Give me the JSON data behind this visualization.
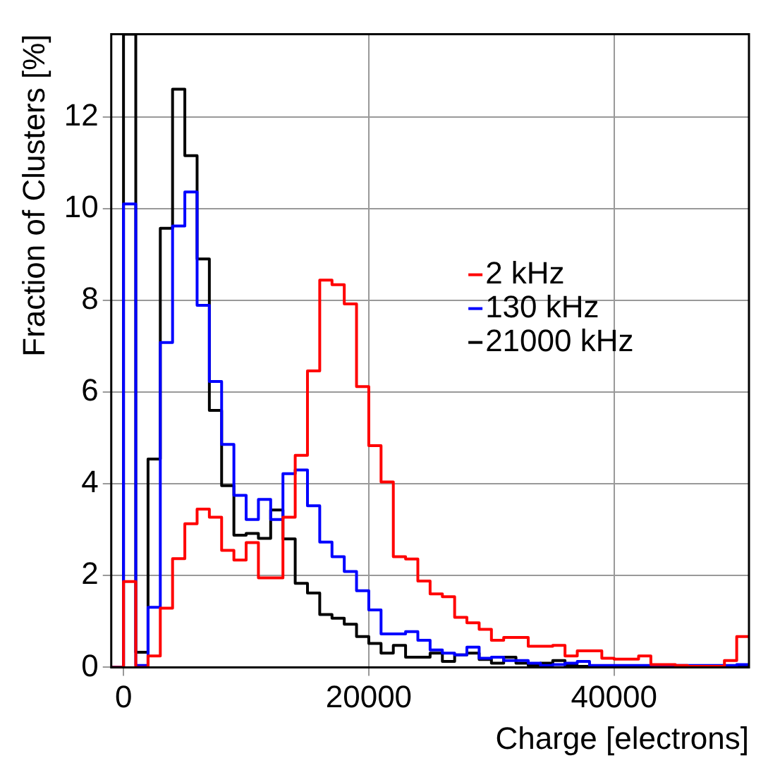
{
  "chart_data": {
    "type": "histogram",
    "xlabel": "Charge [electrons]",
    "ylabel": "Fraction of Clusters [%]",
    "bins": [
      -1000,
      0,
      1000,
      2000,
      3000,
      4000,
      5000,
      6000,
      7000,
      8000,
      9000,
      10000,
      11000,
      12000,
      13000,
      14000,
      15000,
      16000,
      17000,
      18000,
      19000,
      20000,
      21000,
      22000,
      23000,
      24000,
      25000,
      26000,
      27000,
      28000,
      29000,
      30000,
      31000,
      32000,
      33000,
      34000,
      35000,
      36000,
      37000,
      38000,
      39000,
      40000,
      41000,
      42000,
      43000,
      44000,
      45000,
      46000,
      47000,
      48000,
      49000,
      50000,
      51000
    ],
    "series": [
      {
        "name": "2 kHz",
        "color": "#ff0000",
        "values": [
          0,
          1.87,
          0,
          0.25,
          1.29,
          2.37,
          3.13,
          3.45,
          3.27,
          2.55,
          2.34,
          2.72,
          1.95,
          1.95,
          3.27,
          4.62,
          6.46,
          8.44,
          8.34,
          7.92,
          6.12,
          4.83,
          4.04,
          2.41,
          2.36,
          1.88,
          1.6,
          1.54,
          1.09,
          0.97,
          0.83,
          0.59,
          0.65,
          0.65,
          0.46,
          0.46,
          0.48,
          0.25,
          0.36,
          0.36,
          0.2,
          0.18,
          0.18,
          0.25,
          0.06,
          0.06,
          0.04,
          0.02,
          0.02,
          0.02,
          0.15,
          0.67
        ]
      },
      {
        "name": "130 kHz",
        "color": "#0000ff",
        "values": [
          0,
          10.1,
          0.04,
          1.31,
          7.08,
          9.62,
          10.36,
          7.89,
          6.23,
          4.86,
          3.75,
          3.22,
          3.66,
          3.22,
          4.22,
          4.3,
          3.52,
          2.73,
          2.41,
          2.09,
          1.67,
          1.25,
          0.73,
          0.73,
          0.78,
          0.59,
          0.38,
          0.31,
          0.27,
          0.44,
          0.2,
          0.22,
          0.15,
          0.15,
          0.09,
          0.04,
          0.06,
          0.09,
          0.13,
          0.04,
          0.04,
          0.04,
          0.04,
          0.04,
          0.04,
          0.04,
          0.04,
          0.04,
          0.04,
          0.04,
          0.04,
          0.06
        ]
      },
      {
        "name": "21000 kHz",
        "color": "#000000",
        "values": [
          0,
          13.8,
          0.33,
          4.54,
          9.57,
          12.6,
          11.15,
          8.9,
          5.6,
          3.96,
          2.88,
          2.92,
          2.81,
          3.43,
          2.8,
          1.83,
          1.62,
          1.15,
          1.07,
          0.94,
          0.67,
          0.52,
          0.31,
          0.48,
          0.22,
          0.22,
          0.31,
          0.13,
          0.27,
          0.31,
          0.17,
          0.09,
          0.22,
          0.09,
          0.04,
          0.09,
          0.15,
          0.04,
          0.02,
          0.02,
          0.02,
          0.02,
          0.02,
          0.02,
          0.02,
          0.02,
          0.02,
          0.02,
          0.02,
          0.02,
          0.02,
          0.02
        ]
      }
    ],
    "xlim": [
      -1000,
      51000
    ],
    "xticks": [
      0,
      20000,
      40000
    ],
    "ylim": [
      0,
      13.8
    ],
    "yticks": [
      0,
      2,
      4,
      6,
      8,
      10,
      12
    ],
    "grid": true,
    "legend": "right"
  }
}
